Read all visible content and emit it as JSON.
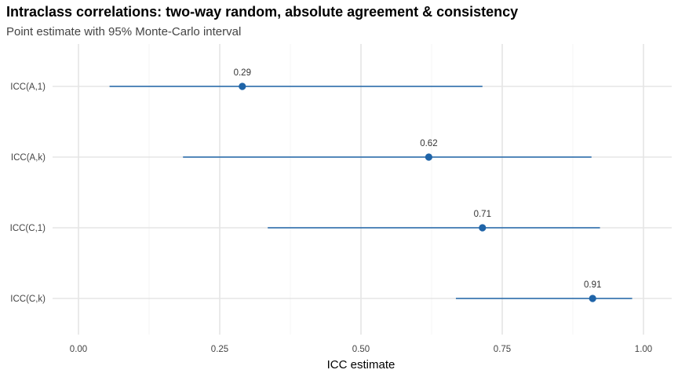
{
  "chart_data": {
    "type": "scatter",
    "title": "Intraclass correlations: two-way random, absolute agreement & consistency",
    "subtitle": "Point estimate with 95% Monte-Carlo interval",
    "xlabel": "ICC estimate",
    "ylabel": "",
    "xlim": [
      -0.01,
      1.02
    ],
    "x_ticks": [
      0.0,
      0.25,
      0.5,
      0.75,
      1.0
    ],
    "x_tick_labels": [
      "0.00",
      "0.25",
      "0.50",
      "0.75",
      "1.00"
    ],
    "categories": [
      "ICC(A,1)",
      "ICC(A,k)",
      "ICC(C,1)",
      "ICC(C,k)"
    ],
    "estimates": [
      0.29,
      0.62,
      0.715,
      0.91
    ],
    "lower": [
      0.055,
      0.185,
      0.335,
      0.668
    ],
    "upper": [
      0.715,
      0.908,
      0.923,
      0.98
    ],
    "labels": [
      "0.29",
      "0.62",
      "0.71",
      "0.91"
    ],
    "grid": true,
    "color": "#1f64a8"
  }
}
